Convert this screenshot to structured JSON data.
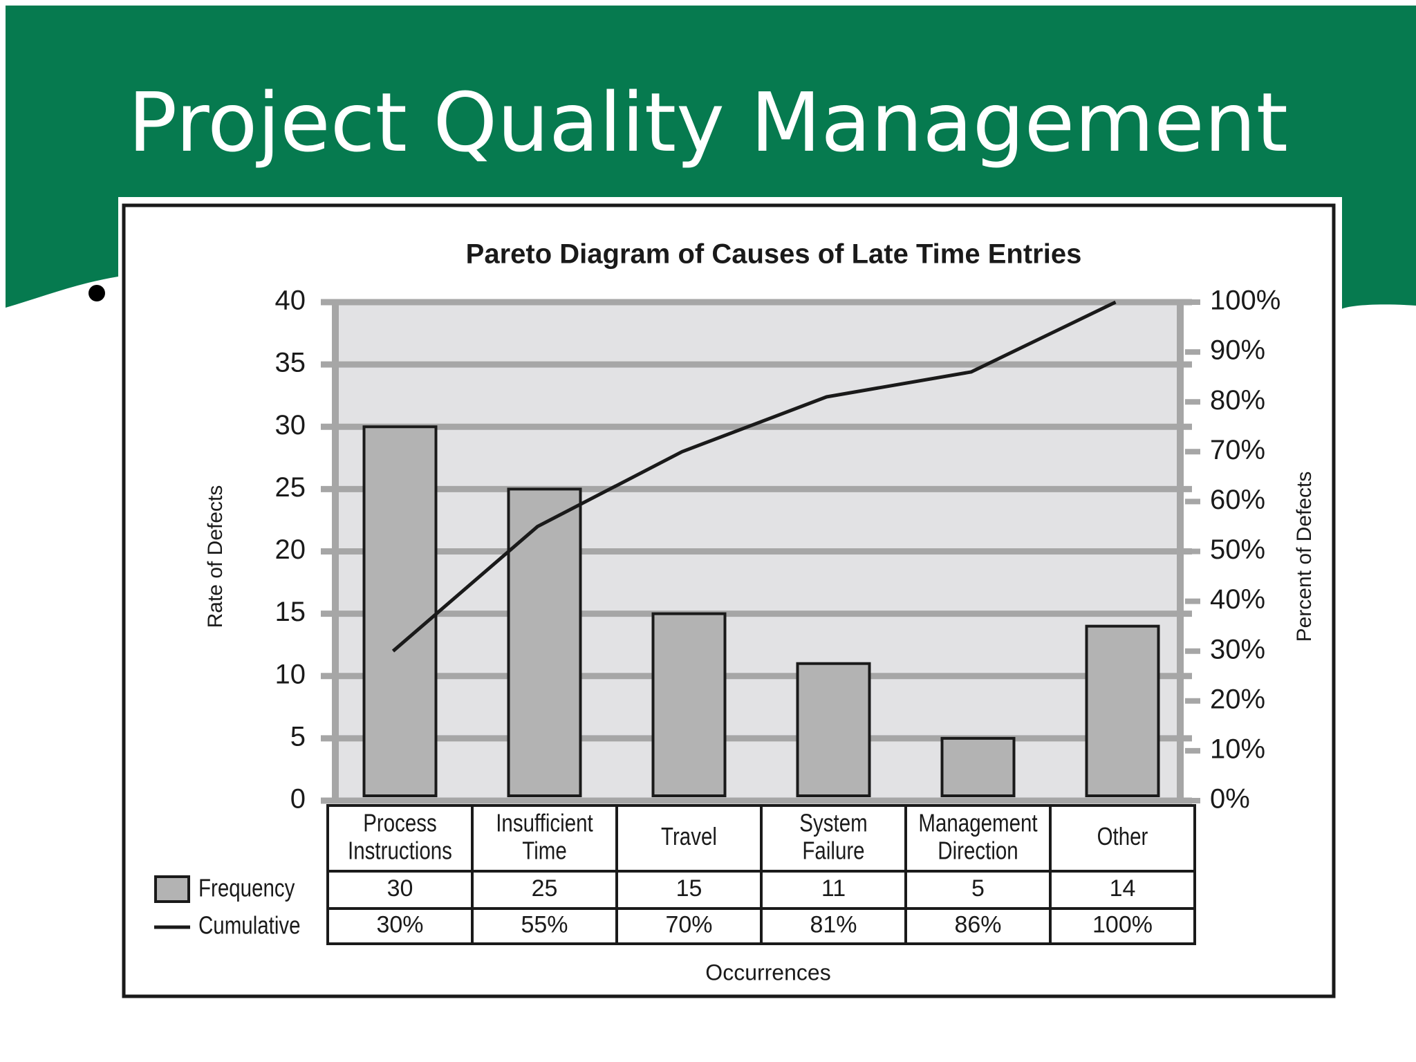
{
  "slide": {
    "title": "Project Quality Management",
    "banner_color": "#067a4f"
  },
  "chart_data": {
    "type": "bar",
    "title": "Pareto Diagram of Causes of Late Time Entries",
    "xlabel": "Occurrences",
    "ylabel": "Rate of Defects",
    "y2label": "Percent of Defects",
    "ylim": [
      0,
      40
    ],
    "y_ticks": [
      0,
      5,
      10,
      15,
      20,
      25,
      30,
      35,
      40
    ],
    "y2lim": [
      0,
      100
    ],
    "y2_ticks": [
      "0%",
      "10%",
      "20%",
      "30%",
      "40%",
      "50%",
      "60%",
      "70%",
      "80%",
      "90%",
      "100%"
    ],
    "categories": [
      [
        "Process",
        "Instructions"
      ],
      [
        "Insufficient",
        "Time"
      ],
      [
        "Travel"
      ],
      [
        "System",
        "Failure"
      ],
      [
        "Management",
        "Direction"
      ],
      [
        "Other"
      ]
    ],
    "series": [
      {
        "name": "Frequency",
        "type": "bar",
        "values": [
          30,
          25,
          15,
          11,
          5,
          14
        ],
        "labels": [
          "30",
          "25",
          "15",
          "11",
          "5",
          "14"
        ]
      },
      {
        "name": "Cumulative",
        "type": "line",
        "values": [
          30,
          55,
          70,
          81,
          86,
          100
        ],
        "labels": [
          "30%",
          "55%",
          "70%",
          "81%",
          "86%",
          "100%"
        ]
      }
    ],
    "grid": true,
    "legend": "bottom-left",
    "colors": {
      "bar": "#b3b3b3",
      "plot_bg": "#e2e2e4",
      "grid": "#a6a6a6",
      "line": "#1a1a1a"
    }
  }
}
